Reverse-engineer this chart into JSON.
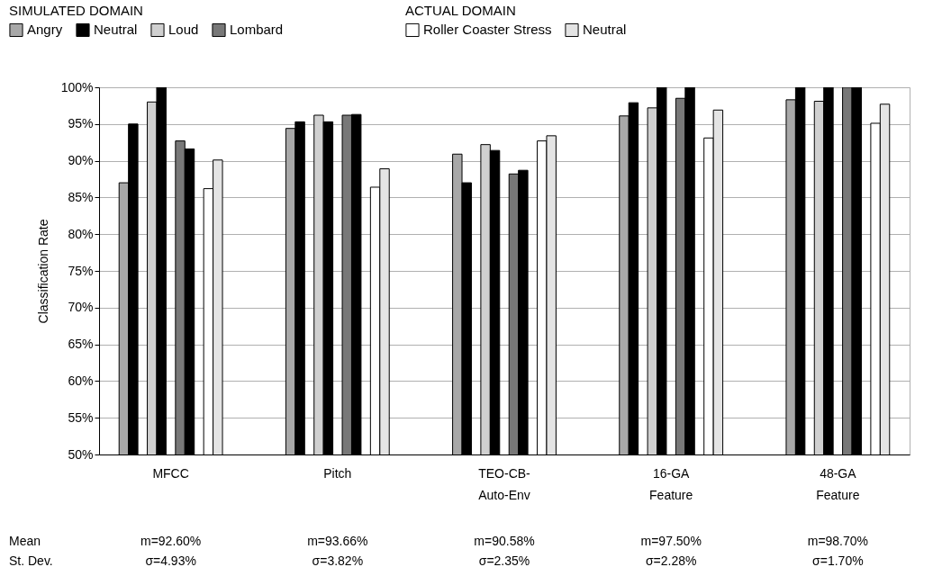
{
  "chart_data": {
    "type": "bar",
    "ylabel": "Classification Rate",
    "legend_title": [
      "SIMULATED DOMAIN",
      "ACTUAL DOMAIN"
    ],
    "legend": "top left",
    "categories": [
      "MFCC",
      "Pitch",
      "TEO-CB-\nAuto-Env",
      "16-GA\nFeature",
      "48-GA\nFeature"
    ],
    "series": [
      {
        "name": "Angry",
        "color": "#a8a8a8",
        "values": [
          87.0,
          94.4,
          90.9,
          96.1,
          98.3
        ]
      },
      {
        "name": "Neutral",
        "color": "#000000",
        "values": [
          95.0,
          95.3,
          87.0,
          97.9,
          100
        ]
      },
      {
        "name": "Loud",
        "color": "#d0d0d0",
        "values": [
          98.0,
          96.2,
          92.2,
          97.2,
          98.1
        ]
      },
      {
        "color": "#000000",
        "values": [
          100,
          95.3,
          91.4,
          100,
          100
        ]
      },
      {
        "name": "Lombard",
        "color": "#787878",
        "values": [
          92.7,
          96.2,
          88.2,
          98.5,
          100
        ]
      },
      {
        "color": "#000000",
        "values": [
          91.6,
          96.3,
          88.7,
          100,
          100
        ]
      },
      {
        "name": "Roller Coaster Stress",
        "color": "#ffffff",
        "values": [
          86.2,
          86.4,
          92.7,
          93.1,
          95.1
        ]
      },
      {
        "name": "Neutral",
        "color": "#e4e4e4",
        "values": [
          90.1,
          88.9,
          93.4,
          96.9,
          97.7
        ]
      }
    ],
    "ylim": [
      50,
      100
    ],
    "yticks": [
      {
        "value": 50,
        "label": "50%"
      },
      {
        "value": 55,
        "label": "55%"
      },
      {
        "value": 60,
        "label": "60%"
      },
      {
        "value": 65,
        "label": "65%"
      },
      {
        "value": 70,
        "label": "70%"
      },
      {
        "value": 75,
        "label": "75%"
      },
      {
        "value": 80,
        "label": "80%"
      },
      {
        "value": 85,
        "label": "85%"
      },
      {
        "value": 90,
        "label": "90%"
      },
      {
        "value": 95,
        "label": "95%"
      },
      {
        "value": 100,
        "label": "100%"
      }
    ],
    "grid": "y",
    "annotations": [
      "Mean",
      "St. Dev.",
      "m=92.60%",
      "σ=4.93%",
      "m=93.66%",
      "σ=3.82%",
      "m=90.58%",
      "σ=2.35%",
      "m=97.50%",
      "σ=2.28%",
      "m=98.70%",
      "σ=1.70%"
    ]
  }
}
